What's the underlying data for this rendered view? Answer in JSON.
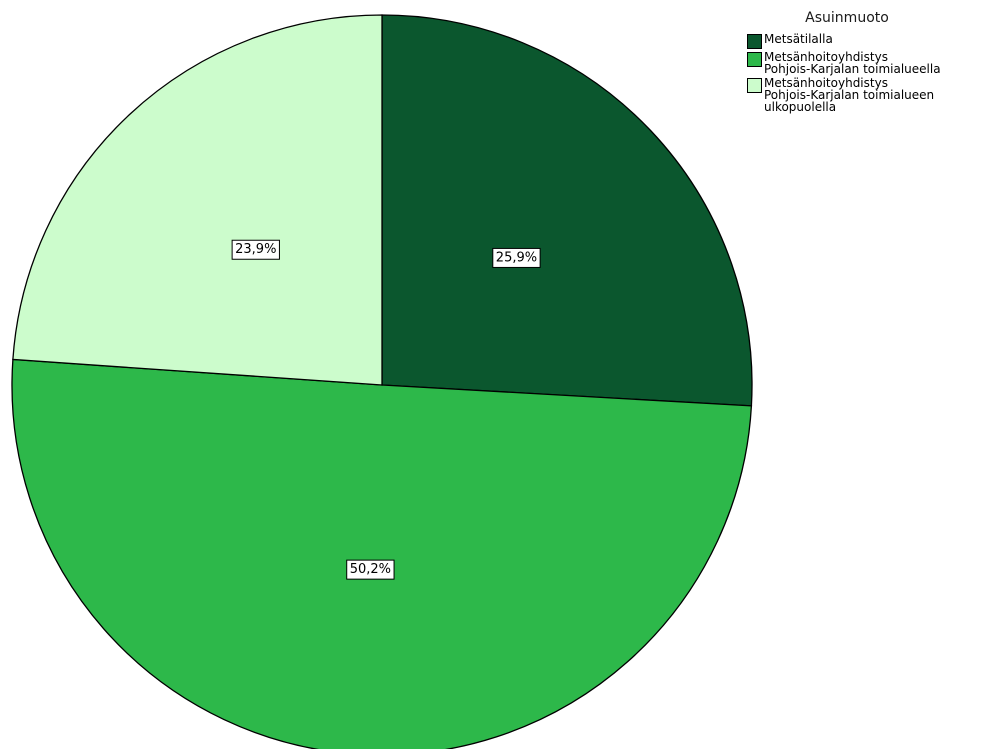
{
  "chart_data": {
    "type": "pie",
    "legend_title": "Asuinmuoto",
    "legend_position": "top-right",
    "start_angle_deg": 0,
    "direction": "clockwise",
    "slices": [
      {
        "label": "Metsätilalla",
        "value": 25.9,
        "display": "25,9%",
        "color": "#0b572e"
      },
      {
        "label": "Metsänhoitoyhdistys\nPohjois-Karjalan toimialueella",
        "value": 50.2,
        "display": "50,2%",
        "color": "#2db84a"
      },
      {
        "label": "Metsänhoitoyhdistys\nPohjois-Karjalan toimialueen\nulkopuolella",
        "value": 23.9,
        "display": "23,9%",
        "color": "#ccfccc"
      }
    ]
  }
}
